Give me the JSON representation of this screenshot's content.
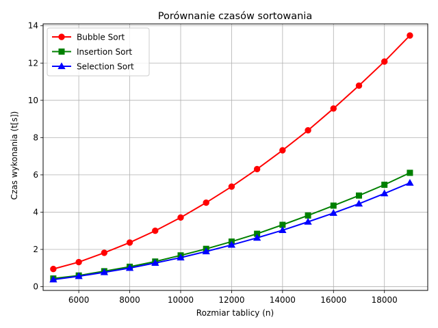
{
  "chart_data": {
    "type": "line",
    "title": "Porównanie czasów sortowania",
    "xlabel": "Rozmiar tablicy (n)",
    "ylabel": "Czas wykonania (t[s])",
    "xlim": [
      4600,
      19700
    ],
    "ylim": [
      -0.2,
      14.1
    ],
    "xticks": [
      6000,
      8000,
      10000,
      12000,
      14000,
      16000,
      18000
    ],
    "yticks": [
      0,
      2,
      4,
      6,
      8,
      10,
      12,
      14
    ],
    "grid": true,
    "legend": "top-left",
    "x": [
      5000,
      6000,
      7000,
      8000,
      9000,
      10000,
      11000,
      12000,
      13000,
      14000,
      15000,
      16000,
      17000,
      18000,
      19000
    ],
    "series": [
      {
        "name": "Bubble Sort",
        "color": "#ff0000",
        "marker": "circle",
        "values": [
          0.95,
          1.32,
          1.82,
          2.37,
          3.0,
          3.71,
          4.51,
          5.37,
          6.31,
          7.32,
          8.39,
          9.56,
          10.79,
          12.08,
          13.48
        ]
      },
      {
        "name": "Insertion Sort",
        "color": "#008000",
        "marker": "square",
        "values": [
          0.44,
          0.6,
          0.83,
          1.07,
          1.35,
          1.68,
          2.03,
          2.42,
          2.84,
          3.32,
          3.82,
          4.35,
          4.89,
          5.47,
          6.11
        ]
      },
      {
        "name": "Selection Sort",
        "color": "#0000ff",
        "marker": "triangle",
        "values": [
          0.38,
          0.56,
          0.77,
          1.0,
          1.27,
          1.56,
          1.89,
          2.24,
          2.62,
          3.03,
          3.48,
          3.95,
          4.45,
          5.0,
          5.57
        ]
      }
    ]
  }
}
